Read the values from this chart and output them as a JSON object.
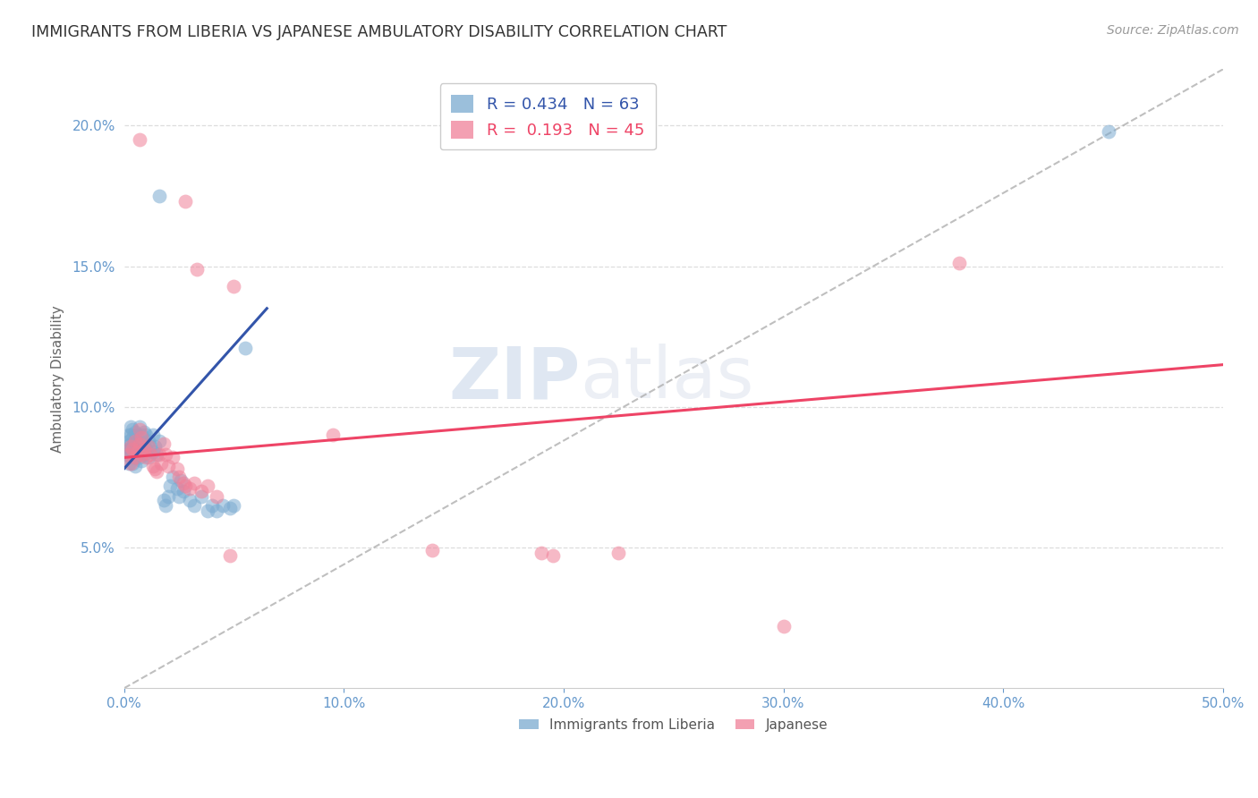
{
  "title": "IMMIGRANTS FROM LIBERIA VS JAPANESE AMBULATORY DISABILITY CORRELATION CHART",
  "source": "Source: ZipAtlas.com",
  "ylabel": "Ambulatory Disability",
  "xlim": [
    0.0,
    0.5
  ],
  "ylim": [
    0.0,
    0.22
  ],
  "xticks": [
    0.0,
    0.1,
    0.2,
    0.3,
    0.4,
    0.5
  ],
  "xticklabels": [
    "0.0%",
    "10.0%",
    "20.0%",
    "30.0%",
    "40.0%",
    "50.0%"
  ],
  "yticks": [
    0.05,
    0.1,
    0.15,
    0.2
  ],
  "yticklabels": [
    "5.0%",
    "10.0%",
    "15.0%",
    "20.0%"
  ],
  "blue_color": "#7aaad0",
  "pink_color": "#f08098",
  "blue_line_color": "#3355aa",
  "pink_line_color": "#ee4466",
  "dashed_line_color": "#aaaaaa",
  "watermark_zip": "ZIP",
  "watermark_atlas": "atlas",
  "blue_line": {
    "x0": 0.0,
    "y0": 0.078,
    "x1": 0.065,
    "y1": 0.135
  },
  "pink_line": {
    "x0": 0.0,
    "y0": 0.082,
    "x1": 0.5,
    "y1": 0.115
  },
  "diag_line": {
    "x0": 0.0,
    "y0": 0.0,
    "x1": 0.5,
    "y1": 0.22
  },
  "blue_x": [
    0.001,
    0.001,
    0.002,
    0.002,
    0.002,
    0.002,
    0.003,
    0.003,
    0.003,
    0.003,
    0.003,
    0.004,
    0.004,
    0.004,
    0.004,
    0.004,
    0.005,
    0.005,
    0.005,
    0.005,
    0.006,
    0.006,
    0.006,
    0.007,
    0.007,
    0.007,
    0.008,
    0.008,
    0.008,
    0.009,
    0.009,
    0.009,
    0.01,
    0.01,
    0.011,
    0.011,
    0.012,
    0.013,
    0.013,
    0.014,
    0.015,
    0.016,
    0.018,
    0.019,
    0.02,
    0.021,
    0.022,
    0.024,
    0.025,
    0.026,
    0.027,
    0.03,
    0.032,
    0.035,
    0.038,
    0.04,
    0.042,
    0.045,
    0.048,
    0.05,
    0.016,
    0.055,
    0.448
  ],
  "blue_y": [
    0.083,
    0.086,
    0.08,
    0.085,
    0.088,
    0.09,
    0.082,
    0.085,
    0.087,
    0.09,
    0.093,
    0.08,
    0.083,
    0.086,
    0.089,
    0.092,
    0.079,
    0.082,
    0.085,
    0.091,
    0.083,
    0.086,
    0.09,
    0.082,
    0.085,
    0.093,
    0.081,
    0.084,
    0.09,
    0.083,
    0.087,
    0.091,
    0.085,
    0.09,
    0.082,
    0.088,
    0.086,
    0.084,
    0.09,
    0.086,
    0.083,
    0.088,
    0.067,
    0.065,
    0.068,
    0.072,
    0.075,
    0.071,
    0.068,
    0.074,
    0.07,
    0.067,
    0.065,
    0.068,
    0.063,
    0.065,
    0.063,
    0.065,
    0.064,
    0.065,
    0.175,
    0.121,
    0.198
  ],
  "pink_x": [
    0.002,
    0.003,
    0.003,
    0.004,
    0.005,
    0.005,
    0.006,
    0.007,
    0.007,
    0.008,
    0.008,
    0.009,
    0.01,
    0.011,
    0.012,
    0.013,
    0.014,
    0.015,
    0.016,
    0.017,
    0.018,
    0.019,
    0.02,
    0.022,
    0.024,
    0.025,
    0.027,
    0.028,
    0.03,
    0.032,
    0.035,
    0.038,
    0.042,
    0.007,
    0.028,
    0.033,
    0.05,
    0.095,
    0.14,
    0.19,
    0.225,
    0.3,
    0.195,
    0.38,
    0.048
  ],
  "pink_y": [
    0.083,
    0.08,
    0.086,
    0.085,
    0.082,
    0.088,
    0.084,
    0.087,
    0.092,
    0.083,
    0.089,
    0.085,
    0.082,
    0.086,
    0.083,
    0.079,
    0.078,
    0.077,
    0.083,
    0.08,
    0.087,
    0.083,
    0.079,
    0.082,
    0.078,
    0.075,
    0.073,
    0.072,
    0.071,
    0.073,
    0.07,
    0.072,
    0.068,
    0.195,
    0.173,
    0.149,
    0.143,
    0.09,
    0.049,
    0.048,
    0.048,
    0.022,
    0.047,
    0.151,
    0.047
  ]
}
